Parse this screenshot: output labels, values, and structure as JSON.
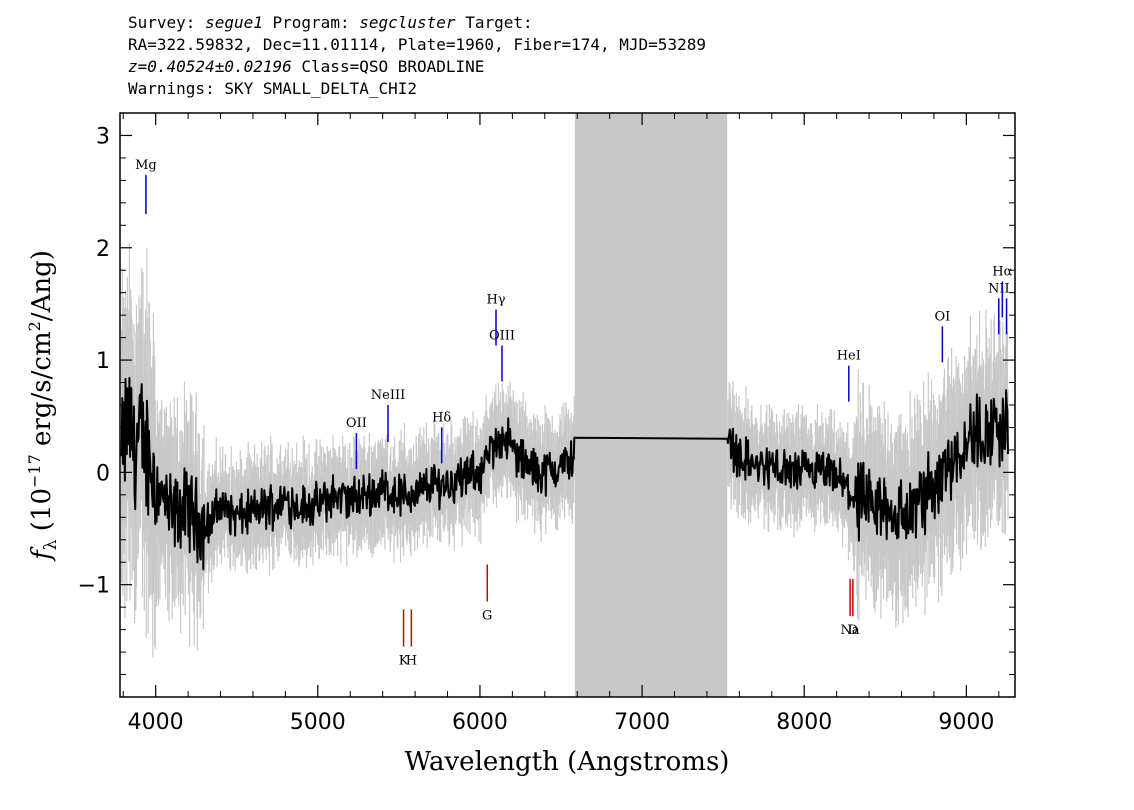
{
  "header": {
    "survey_label": "Survey:",
    "survey": "segue1",
    "program_label": "Program:",
    "program": "segcluster",
    "target_label": "Target:",
    "line2": "RA=322.59832, Dec=11.01114, Plate=1960, Fiber=174, MJD=53289",
    "redshift": "z=0.40524±0.02196",
    "class_text": "Class=QSO BROADLINE",
    "warnings": "Warnings: SKY SMALL_DELTA_CHI2"
  },
  "chart_data": {
    "type": "line",
    "title": "",
    "xlabel": "Wavelength (Angstroms)",
    "ylabel": "f_λ (10^-17 erg/s/cm^2/Ang)",
    "ylabel_parts": {
      "f": "f",
      "sub": "λ",
      "open": " (10",
      "exp": "−17",
      "mid": " erg/s/cm",
      "exp2": "2",
      "close": "/Ang)"
    },
    "xlim": [
      3780,
      9300
    ],
    "ylim": [
      -2.0,
      3.2
    ],
    "x_ticks": [
      4000,
      5000,
      6000,
      7000,
      8000,
      9000
    ],
    "x_tick_labels": [
      "4000",
      "5000",
      "6000",
      "7000",
      "8000",
      "9000"
    ],
    "y_ticks": [
      -1,
      0,
      1,
      2,
      3
    ],
    "y_tick_labels": [
      "−1",
      "0",
      "1",
      "2",
      "3"
    ],
    "masked_region": [
      6585,
      7525
    ],
    "grid": false,
    "colors": {
      "flux": "#000000",
      "error": "#c8c8c8",
      "mask": "#c8c8c8",
      "emission": "#0000cc",
      "absorption": "#cc0000"
    },
    "series": [
      {
        "name": "",
        "x": [
          3790,
          3830,
          3870,
          3910,
          3950,
          4000,
          4100,
          4200,
          4300,
          4400,
          4500,
          4600,
          4700,
          4800,
          4900,
          5000,
          5100,
          5200,
          5300,
          5400,
          5500,
          5600,
          5700,
          5800,
          5900,
          6000,
          6100,
          6150,
          6200,
          6300,
          6400,
          6500,
          6585,
          7525,
          7600,
          7700,
          7800,
          7900,
          8000,
          8100,
          8200,
          8300,
          8400,
          8500,
          8600,
          8700,
          8800,
          8900,
          9000,
          9100,
          9200,
          9260
        ],
        "y": [
          0.1,
          0.5,
          0.2,
          0.3,
          0.2,
          -0.1,
          -0.4,
          -0.3,
          -0.5,
          -0.3,
          -0.4,
          -0.35,
          -0.3,
          -0.25,
          -0.3,
          -0.3,
          -0.2,
          -0.25,
          -0.2,
          -0.15,
          -0.2,
          -0.2,
          -0.1,
          -0.1,
          -0.05,
          0.0,
          0.25,
          0.35,
          0.2,
          0.05,
          0.0,
          0.05,
          0.15,
          0.3,
          0.15,
          0.05,
          0.05,
          0.0,
          0.0,
          0.0,
          -0.05,
          -0.2,
          -0.35,
          -0.3,
          -0.4,
          -0.3,
          -0.1,
          0.1,
          0.3,
          0.35,
          0.4,
          0.45
        ]
      }
    ],
    "spectral_lines": [
      {
        "label": "Mg",
        "x": 3940,
        "y_top": 2.65,
        "y_bottom": 2.3,
        "kind": "emission"
      },
      {
        "label": "OII",
        "x": 5238,
        "y_top": 0.35,
        "y_bottom": 0.03,
        "kind": "emission"
      },
      {
        "label": "NeIII",
        "x": 5433,
        "y_top": 0.6,
        "y_bottom": 0.27,
        "kind": "emission"
      },
      {
        "label": "Hδ",
        "x": 5764,
        "y_top": 0.4,
        "y_bottom": 0.08,
        "kind": "emission"
      },
      {
        "label": "Hγ",
        "x": 6099,
        "y_top": 1.45,
        "y_bottom": 1.13,
        "kind": "emission"
      },
      {
        "label": "OIII",
        "x": 6136,
        "y_top": 1.13,
        "y_bottom": 0.81,
        "kind": "emission"
      },
      {
        "label": "HeI",
        "x": 8275,
        "y_top": 0.95,
        "y_bottom": 0.63,
        "kind": "emission"
      },
      {
        "label": "OI",
        "x": 8852,
        "y_top": 1.3,
        "y_bottom": 0.98,
        "kind": "emission"
      },
      {
        "label": "NII",
        "x": 9200,
        "y_top": 1.55,
        "y_bottom": 1.23,
        "kind": "emission"
      },
      {
        "label": "Hα",
        "x": 9222,
        "y_top": 1.7,
        "y_bottom": 1.38,
        "kind": "emission"
      },
      {
        "label": "",
        "x": 9248,
        "y_top": 1.55,
        "y_bottom": 1.23,
        "kind": "emission"
      },
      {
        "label": "K",
        "x": 5529,
        "y_top": -1.22,
        "y_bottom": -1.55,
        "kind": "absorption"
      },
      {
        "label": "H",
        "x": 5577,
        "y_top": -1.22,
        "y_bottom": -1.55,
        "kind": "absorption"
      },
      {
        "label": "G",
        "x": 6045,
        "y_top": -0.82,
        "y_bottom": -1.15,
        "kind": "absorption"
      },
      {
        "label": "Na",
        "x": 8283,
        "y_top": -0.95,
        "y_bottom": -1.28,
        "kind": "absorption"
      },
      {
        "label": "D",
        "x": 8300,
        "y_top": -0.95,
        "y_bottom": -1.28,
        "kind": "absorption"
      }
    ]
  }
}
